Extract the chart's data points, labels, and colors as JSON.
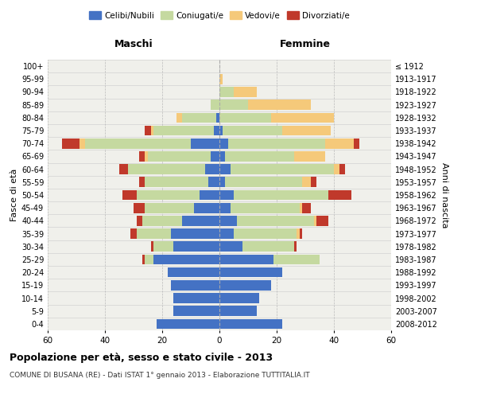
{
  "age_groups": [
    "0-4",
    "5-9",
    "10-14",
    "15-19",
    "20-24",
    "25-29",
    "30-34",
    "35-39",
    "40-44",
    "45-49",
    "50-54",
    "55-59",
    "60-64",
    "65-69",
    "70-74",
    "75-79",
    "80-84",
    "85-89",
    "90-94",
    "95-99",
    "100+"
  ],
  "birth_years": [
    "2008-2012",
    "2003-2007",
    "1998-2002",
    "1993-1997",
    "1988-1992",
    "1983-1987",
    "1978-1982",
    "1973-1977",
    "1968-1972",
    "1963-1967",
    "1958-1962",
    "1953-1957",
    "1948-1952",
    "1943-1947",
    "1938-1942",
    "1933-1937",
    "1928-1932",
    "1923-1927",
    "1918-1922",
    "1913-1917",
    "≤ 1912"
  ],
  "males": {
    "celibi": [
      22,
      16,
      16,
      17,
      18,
      23,
      16,
      17,
      13,
      9,
      7,
      4,
      5,
      3,
      10,
      2,
      1,
      0,
      0,
      0,
      0
    ],
    "coniugati": [
      0,
      0,
      0,
      0,
      0,
      3,
      7,
      12,
      14,
      17,
      22,
      22,
      27,
      22,
      37,
      21,
      12,
      3,
      0,
      0,
      0
    ],
    "vedovi": [
      0,
      0,
      0,
      0,
      0,
      0,
      0,
      0,
      0,
      0,
      0,
      0,
      0,
      1,
      2,
      1,
      2,
      0,
      0,
      0,
      0
    ],
    "divorziati": [
      0,
      0,
      0,
      0,
      0,
      1,
      1,
      2,
      2,
      4,
      5,
      2,
      3,
      2,
      6,
      2,
      0,
      0,
      0,
      0,
      0
    ]
  },
  "females": {
    "nubili": [
      22,
      13,
      14,
      18,
      22,
      19,
      8,
      5,
      6,
      4,
      5,
      2,
      4,
      2,
      3,
      1,
      0,
      0,
      0,
      0,
      0
    ],
    "coniugate": [
      0,
      0,
      0,
      0,
      0,
      16,
      18,
      22,
      27,
      24,
      33,
      27,
      36,
      24,
      34,
      21,
      18,
      10,
      5,
      0,
      0
    ],
    "vedove": [
      0,
      0,
      0,
      0,
      0,
      0,
      0,
      1,
      1,
      1,
      0,
      3,
      2,
      11,
      10,
      17,
      22,
      22,
      8,
      1,
      0
    ],
    "divorziate": [
      0,
      0,
      0,
      0,
      0,
      0,
      1,
      1,
      4,
      3,
      8,
      2,
      2,
      0,
      2,
      0,
      0,
      0,
      0,
      0,
      0
    ]
  },
  "colors": {
    "celibi": "#4472C4",
    "coniugati": "#C5D9A0",
    "vedovi": "#F5C97A",
    "divorziati": "#C0392B"
  },
  "xlim": 60,
  "title": "Popolazione per età, sesso e stato civile - 2013",
  "subtitle": "COMUNE DI BUSANA (RE) - Dati ISTAT 1° gennaio 2013 - Elaborazione TUTTITALIA.IT",
  "ylabel_left": "Fasce di età",
  "ylabel_right": "Anni di nascita",
  "xlabel_left": "Maschi",
  "xlabel_right": "Femmine",
  "bg_color": "#F0F0EB",
  "grid_color": "#BBBBBB"
}
